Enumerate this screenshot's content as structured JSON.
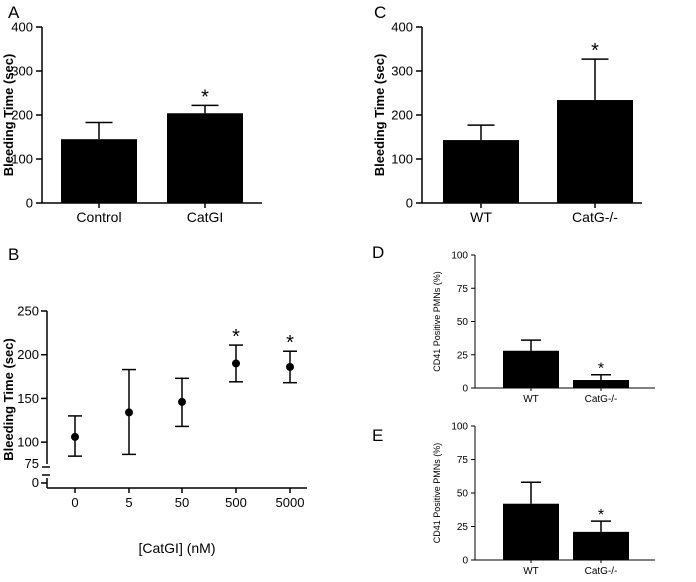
{
  "chart_data": [
    {
      "id": "A",
      "type": "bar",
      "panel_label": "A",
      "categories": [
        "Control",
        "CatGI"
      ],
      "values": [
        145,
        204
      ],
      "errors": [
        38,
        18
      ],
      "annotations": [
        "",
        "*"
      ],
      "ylabel": "Bleeding Time (sec)",
      "ylim": [
        0,
        400
      ],
      "yticks": [
        0,
        100,
        200,
        300,
        400
      ],
      "tick_labels": [
        "0",
        "100",
        "200",
        "300",
        "400"
      ],
      "bar_color": "#000000"
    },
    {
      "id": "C",
      "type": "bar",
      "panel_label": "C",
      "categories": [
        "WT",
        "CatG-/-"
      ],
      "values": [
        143,
        234
      ],
      "errors": [
        34,
        93
      ],
      "annotations": [
        "",
        "*"
      ],
      "ylabel": "Bleeding Time  (sec)",
      "ylim": [
        0,
        400
      ],
      "yticks": [
        0,
        100,
        200,
        300,
        400
      ],
      "tick_labels": [
        "0",
        "100",
        "200",
        "300",
        "400"
      ],
      "bar_color": "#000000"
    },
    {
      "id": "B",
      "type": "scatter",
      "panel_label": "B",
      "categories": [
        "0",
        "5",
        "50",
        "500",
        "5000"
      ],
      "values": [
        106,
        134,
        146,
        190,
        186
      ],
      "err_low": [
        22,
        48,
        28,
        21,
        18
      ],
      "err_high": [
        24,
        49,
        27,
        21,
        18
      ],
      "annotations": [
        "",
        "",
        "",
        "*",
        "*"
      ],
      "xlabel": "[CatGI] (nM)",
      "ylabel": "Bleeding Time (sec)",
      "ylim": [
        75,
        250
      ],
      "yticks": [
        100,
        150,
        200,
        250
      ],
      "tick_labels": [
        "100",
        "150",
        "200",
        "250"
      ],
      "broken_axis_labels": [
        "75",
        "0"
      ]
    },
    {
      "id": "D",
      "type": "bar",
      "panel_label": "D",
      "categories": [
        "WT",
        "CatG-/-"
      ],
      "values": [
        28,
        6
      ],
      "errors": [
        8,
        4
      ],
      "annotations": [
        "",
        "*"
      ],
      "ylabel": "CD41 Positive PMNs  (%)",
      "ylim": [
        0,
        100
      ],
      "yticks": [
        0,
        25,
        50,
        75,
        100
      ],
      "tick_labels": [
        "0",
        "25",
        "50",
        "75",
        "100"
      ],
      "bar_color": "#000000"
    },
    {
      "id": "E",
      "type": "bar",
      "panel_label": "E",
      "categories": [
        "WT",
        "CatG-/-"
      ],
      "values": [
        42,
        21
      ],
      "errors": [
        16,
        8
      ],
      "annotations": [
        "",
        "*"
      ],
      "ylabel": "CD41 Positive PMNs  (%)",
      "ylim": [
        0,
        100
      ],
      "yticks": [
        0,
        25,
        50,
        75,
        100
      ],
      "tick_labels": [
        "0",
        "25",
        "50",
        "75",
        "100"
      ],
      "bar_color": "#000000"
    }
  ]
}
